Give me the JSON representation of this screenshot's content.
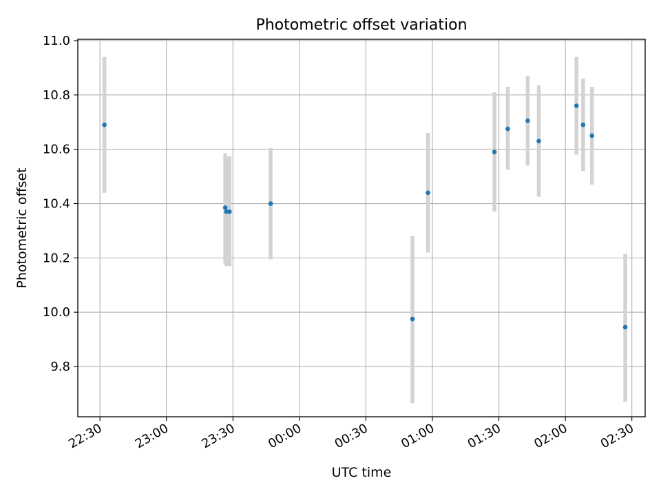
{
  "chart_data": {
    "type": "scatter",
    "title": "Photometric offset variation",
    "xlabel": "UTC time",
    "ylabel": "Photometric offset",
    "x_unit": "UTC time (hh:mm), spanning midnight",
    "xlim": [
      "22:20",
      "02:36"
    ],
    "ylim": [
      9.615,
      11.005
    ],
    "x_ticks": [
      "22:30",
      "23:00",
      "23:30",
      "00:00",
      "00:30",
      "01:00",
      "01:30",
      "02:00",
      "02:30"
    ],
    "y_ticks": [
      "9.8",
      "10.0",
      "10.2",
      "10.4",
      "10.6",
      "10.8",
      "11.0"
    ],
    "grid": true,
    "point_color": "#1f77b4",
    "errorbar_color": "#d3d3d3",
    "points": [
      {
        "x": "22:32",
        "y": 10.69,
        "ylow": 10.44,
        "yhigh": 10.94
      },
      {
        "x": "23:27",
        "y": 10.385,
        "ylow": 10.18,
        "yhigh": 10.585
      },
      {
        "x": "23:27",
        "y": 10.37,
        "ylow": 10.17,
        "yhigh": 10.57
      },
      {
        "x": "23:28",
        "y": 10.37,
        "ylow": 10.17,
        "yhigh": 10.575
      },
      {
        "x": "23:47",
        "y": 10.4,
        "ylow": 10.195,
        "yhigh": 10.605
      },
      {
        "x": "00:51",
        "y": 9.975,
        "ylow": 9.665,
        "yhigh": 10.28
      },
      {
        "x": "00:58",
        "y": 10.44,
        "ylow": 10.22,
        "yhigh": 10.66
      },
      {
        "x": "01:28",
        "y": 10.59,
        "ylow": 10.37,
        "yhigh": 10.81
      },
      {
        "x": "01:34",
        "y": 10.675,
        "ylow": 10.525,
        "yhigh": 10.83
      },
      {
        "x": "01:43",
        "y": 10.705,
        "ylow": 10.54,
        "yhigh": 10.87
      },
      {
        "x": "01:48",
        "y": 10.63,
        "ylow": 10.425,
        "yhigh": 10.835
      },
      {
        "x": "02:05",
        "y": 10.76,
        "ylow": 10.58,
        "yhigh": 10.94
      },
      {
        "x": "02:08",
        "y": 10.69,
        "ylow": 10.52,
        "yhigh": 10.86
      },
      {
        "x": "02:12",
        "y": 10.65,
        "ylow": 10.47,
        "yhigh": 10.83
      },
      {
        "x": "02:27",
        "y": 9.945,
        "ylow": 9.67,
        "yhigh": 10.215
      }
    ]
  }
}
